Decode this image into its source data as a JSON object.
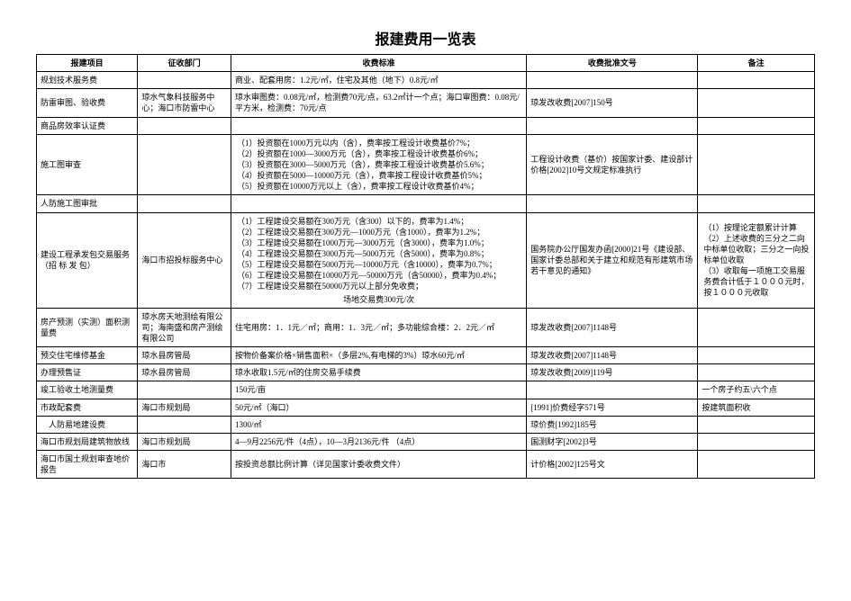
{
  "title": "报建费用一览表",
  "header": {
    "item": "报建项目",
    "dept": "征收部门",
    "standard": "收费标准",
    "doc": "收费批准文号",
    "remark": "备注"
  },
  "rows": [
    {
      "item": "规划技术服务费",
      "dept": "",
      "standard": "商业、配套用房：1.2元/㎡，住宅及其他（地下）0.8元/㎡",
      "doc": "",
      "remark": ""
    },
    {
      "item": "防雷审图、验收费",
      "dept": "琼水气象科技服务中心；海口市防雷中心",
      "standard": "琼水审图费：0.08元/㎡，检测费70元/点，63.2㎡计一个点；海口审图费：0.08元/平方米，检测费：70元/点",
      "doc": "琼发改收费[2007]150号",
      "remark": ""
    },
    {
      "item": "商品房效率认证费",
      "dept": "",
      "standard": "",
      "doc": "",
      "remark": ""
    },
    {
      "item": "施工图审查",
      "dept": "",
      "standard_lines": [
        "（1）投资额在1000万元以内（含），费率按工程设计收费基价7%；",
        "（2）投资额在1000—3000万元（含），费率按工程设计收费基价6%；",
        "（3）投资额在3000—5000万元（含），费率按工程设计收费基价5.6%；",
        "（4）投资额在5000—10000万元（含），费率按工程设计收费基价5%；",
        "（5）投资额在10000万元以上（含），费率按工程设计收费基价4%；"
      ],
      "doc": "工程设计收费（基价）按国家计委、建设部计价格[2002]10号文规定标准执行",
      "remark": ""
    },
    {
      "item": "人防施工图审批",
      "dept": "",
      "standard": "",
      "doc": "",
      "remark": ""
    },
    {
      "item": "建设工程承发包交易服务（招 标 发 包）",
      "dept": "海口市招投标服务中心",
      "standard_lines": [
        "（1）工程建设交易额在300万元（含300）以下的，费率为1.4%；",
        "（2）工程建设交易额在300万元—1000万元（含1000），费率为1.2%；",
        "（3）工程建设交易额在1000万元—3000万元（含3000），费率为1.0%；",
        "（4）工程建设交易额在3000万元—5000万元（含5000），费率为0.8%；",
        "（5）工程建设交易额在5000万元—10000万元（含10000），费率为0.7%；",
        "（6）工程建设交易额在10000万元—50000万元（含50000），费率为0.4%；",
        "（7）工程建设交易额在50000万元以上部分免收费；"
      ],
      "standard_footer": "场地交易费300元/次",
      "doc": "国务院办公厅国发办函[2000]21号《建设部、国家计委总部和关于建立和规范有形建筑市场若干意见的通知》",
      "remark_lines": [
        "（1）按理论定额累计计算",
        "（2）上述收费的三分之二向中标单位收取；三分之一向投标单位收取",
        "（3）收取每一项施工交易服务费合计低于１０００元时，按１０００元收取"
      ]
    },
    {
      "item": "房产预测（实测）面积测量费",
      "dept": "琼水房天地测绘有限公司；海南盛和房产测绘有限公司",
      "standard": "住宅用房：1．1元／㎡；商用：1．3元／㎡；多功能综合楼：2．2元／㎡",
      "doc": "琼发改收费[2007]1148号",
      "remark": ""
    },
    {
      "item": "预交住宅维修基金",
      "dept": "琼水县房管局",
      "standard": "按物价备案价格×销售面积×（多层2%,有电梯的3%）琼水60元/㎡",
      "doc": "琼发改收费[2007]1148号",
      "remark": ""
    },
    {
      "item": "办理预售证",
      "dept": "琼水县房管局",
      "standard": "琼水收取1.5元/㎡的住房交易手续费",
      "doc": "琼发改收费[2009]119号",
      "remark": ""
    },
    {
      "item": "竣工验收土地测量费",
      "dept": "",
      "standard": "150元/亩",
      "doc": "",
      "remark": "一个房子约五\\六个点"
    },
    {
      "item": "市政配套费",
      "dept": "海口市规划局",
      "standard": "50元/㎡（海口）",
      "doc": "[1991]价费经字571号",
      "remark": "按建筑面积收"
    },
    {
      "item": "　人防易地建设费",
      "dept": "",
      "standard": "1300/㎡",
      "doc": "琼价费[1992]185号",
      "remark": ""
    },
    {
      "item": "海口市规划局建筑物放线",
      "dept": "海口市规划局",
      "standard": "4—9月2256元/件（4点），10—3月2136元/件 （4点）",
      "doc": "国测财字[2002]3号",
      "remark": ""
    },
    {
      "item": "海口市国土规划审查地价报告",
      "dept": "海口市",
      "standard": "按投资总额比例计算（详见国家计委收费文件）",
      "doc": "计价格[2002]125号文",
      "remark": ""
    }
  ]
}
